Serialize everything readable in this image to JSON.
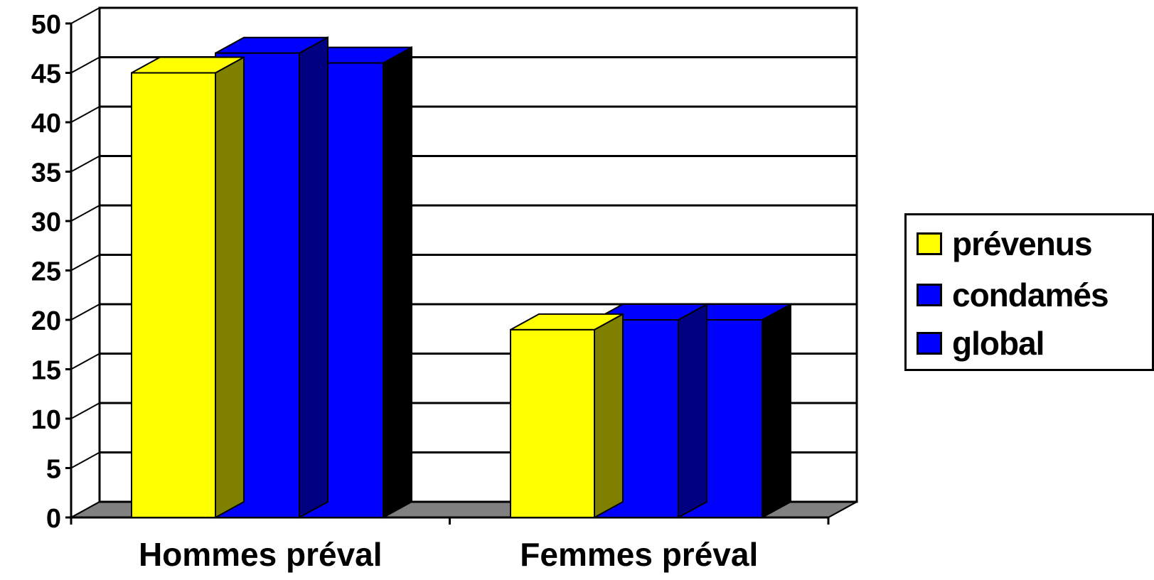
{
  "chart_data": {
    "type": "bar",
    "title": "",
    "xlabel": "",
    "ylabel": "",
    "ylim": [
      0,
      50
    ],
    "yticks": [
      0,
      5,
      10,
      15,
      20,
      25,
      30,
      35,
      40,
      45,
      50
    ],
    "categories": [
      "Hommes préval",
      "Femmes préval"
    ],
    "series": [
      {
        "name": "prévenus",
        "values": [
          45,
          19
        ],
        "color": "#FFFF00"
      },
      {
        "name": "condamés",
        "values": [
          47,
          20
        ],
        "color": "#0000FF"
      },
      {
        "name": "global",
        "values": [
          46,
          20
        ],
        "color": "#0000FF"
      }
    ],
    "grid": true,
    "three_d": true,
    "legend_position": "right"
  }
}
